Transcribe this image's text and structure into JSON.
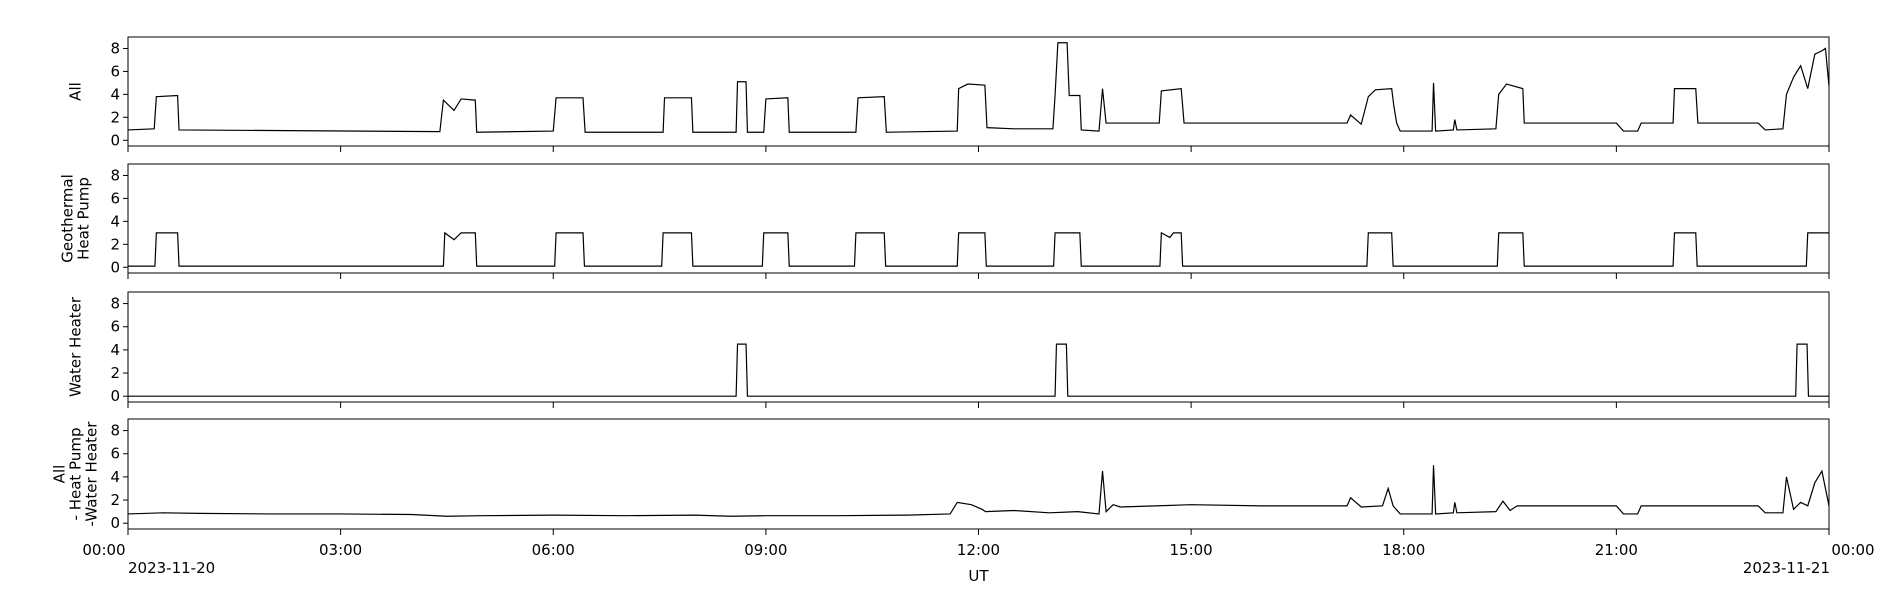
{
  "chart_data": [
    {
      "type": "line",
      "ylabel": [
        "All"
      ],
      "color": "#000000",
      "ylim": [
        -0.5,
        9
      ],
      "yticks": [
        0,
        2,
        4,
        6,
        8
      ],
      "xlim": [
        0,
        24
      ],
      "x": [
        0,
        0.37,
        0.4,
        0.7,
        0.72,
        2,
        4.4,
        4.45,
        4.6,
        4.7,
        4.9,
        4.92,
        6,
        6.04,
        6.42,
        6.45,
        7.55,
        7.57,
        7.95,
        7.97,
        8.58,
        8.6,
        8.72,
        8.74,
        8.97,
        9,
        9.31,
        9.33,
        10.27,
        10.3,
        10.67,
        10.7,
        11.7,
        11.72,
        11.85,
        12.09,
        12.12,
        12.5,
        13.05,
        13.08,
        13.12,
        13.25,
        13.28,
        13.43,
        13.45,
        13.7,
        13.75,
        13.8,
        14,
        14.55,
        14.58,
        14.86,
        14.9,
        16,
        17.2,
        17.25,
        17.4,
        17.5,
        17.6,
        17.83,
        17.86,
        17.9,
        17.95,
        18.4,
        18.42,
        18.45,
        18.7,
        18.72,
        18.75,
        19.3,
        19.34,
        19.45,
        19.68,
        19.7,
        21,
        21.1,
        21.3,
        21.35,
        21.8,
        21.82,
        22.12,
        22.15,
        23,
        23.1,
        23.35,
        23.4,
        23.5,
        23.6,
        23.7,
        23.8,
        23.9,
        23.95,
        24
      ],
      "values": [
        0.9,
        1.0,
        3.8,
        3.9,
        0.9,
        0.85,
        0.75,
        3.5,
        2.6,
        3.6,
        3.5,
        0.7,
        0.8,
        3.7,
        3.7,
        0.7,
        0.7,
        3.7,
        3.7,
        0.7,
        0.7,
        5.1,
        5.1,
        0.7,
        0.7,
        3.6,
        3.7,
        0.7,
        0.7,
        3.7,
        3.8,
        0.7,
        0.8,
        4.5,
        4.9,
        4.8,
        1.1,
        1.0,
        1.0,
        3.9,
        8.5,
        8.5,
        3.9,
        3.9,
        0.9,
        0.8,
        4.5,
        1.5,
        1.5,
        1.5,
        4.3,
        4.5,
        1.5,
        1.5,
        1.5,
        2.2,
        1.4,
        3.8,
        4.4,
        4.5,
        3,
        1.5,
        0.8,
        0.8,
        5.0,
        0.8,
        0.9,
        1.8,
        0.9,
        1.0,
        4.0,
        4.9,
        4.5,
        1.5,
        1.5,
        0.8,
        0.8,
        1.5,
        1.5,
        4.5,
        4.5,
        1.5,
        1.5,
        0.9,
        1.0,
        4.0,
        5.5,
        6.5,
        4.5,
        7.5,
        7.8,
        8.0,
        4.7
      ]
    },
    {
      "type": "line",
      "ylabel": [
        "Geothermal",
        "Heat Pump"
      ],
      "color": "#000000",
      "ylim": [
        -0.5,
        9
      ],
      "yticks": [
        0,
        2,
        4,
        6,
        8
      ],
      "xlim": [
        0,
        24
      ],
      "x": [
        0,
        0.38,
        0.4,
        0.7,
        0.72,
        4.45,
        4.47,
        4.6,
        4.7,
        4.9,
        4.92,
        6.02,
        6.04,
        6.42,
        6.44,
        7.53,
        7.55,
        7.95,
        7.97,
        8.95,
        8.97,
        9.31,
        9.33,
        10.25,
        10.27,
        10.67,
        10.69,
        11.7,
        11.72,
        12.09,
        12.11,
        13.06,
        13.08,
        13.43,
        13.45,
        14.56,
        14.58,
        14.7,
        14.75,
        14.86,
        14.88,
        17.48,
        17.5,
        17.83,
        17.85,
        19.32,
        19.34,
        19.68,
        19.7,
        21.8,
        21.82,
        22.12,
        22.14,
        23.68,
        23.7,
        24
      ],
      "values": [
        0.1,
        0.1,
        3,
        3,
        0.1,
        0.1,
        3,
        2.4,
        3,
        3,
        0.1,
        0.1,
        3,
        3,
        0.1,
        0.1,
        3,
        3,
        0.1,
        0.1,
        3,
        3,
        0.1,
        0.1,
        3,
        3,
        0.1,
        0.1,
        3,
        3,
        0.1,
        0.1,
        3,
        3,
        0.1,
        0.1,
        3,
        2.6,
        3,
        3,
        0.1,
        0.1,
        3,
        3,
        0.1,
        0.1,
        3,
        3,
        0.1,
        0.1,
        3,
        3,
        0.1,
        0.1,
        3,
        3
      ]
    },
    {
      "type": "line",
      "ylabel": [
        "Water Heater"
      ],
      "color": "#000000",
      "ylim": [
        -0.5,
        9
      ],
      "yticks": [
        0,
        2,
        4,
        6,
        8
      ],
      "xlim": [
        0,
        24
      ],
      "x": [
        0,
        8.58,
        8.6,
        8.72,
        8.74,
        13.08,
        13.1,
        13.24,
        13.26,
        23.53,
        23.55,
        23.69,
        23.71,
        24
      ],
      "values": [
        0,
        0,
        4.5,
        4.5,
        0,
        0,
        4.5,
        4.5,
        0,
        0,
        4.5,
        4.5,
        0,
        0
      ]
    },
    {
      "type": "line",
      "ylabel": [
        "All",
        "- Heat Pump",
        "-Water Heater"
      ],
      "color": "#000000",
      "ylim": [
        -0.5,
        9
      ],
      "yticks": [
        0,
        2,
        4,
        6,
        8
      ],
      "xlim": [
        0,
        24
      ],
      "xlabel": "UT",
      "xticks": [
        {
          "value": 0,
          "label": "00:00"
        },
        {
          "value": 3,
          "label": "03:00"
        },
        {
          "value": 6,
          "label": "06:00"
        },
        {
          "value": 9,
          "label": "09:00"
        },
        {
          "value": 12,
          "label": "12:00"
        },
        {
          "value": 15,
          "label": "15:00"
        },
        {
          "value": 18,
          "label": "18:00"
        },
        {
          "value": 21,
          "label": "21:00"
        },
        {
          "value": 24,
          "label": "00:00"
        }
      ],
      "date_labels": [
        {
          "value": 0,
          "label": "2023-11-20"
        },
        {
          "value": 24,
          "label": "2023-11-21"
        }
      ],
      "x": [
        0,
        0.5,
        1,
        2,
        3,
        4,
        4.5,
        5,
        6,
        7,
        8,
        8.5,
        9,
        10,
        11,
        11.6,
        11.7,
        11.9,
        12.05,
        12.1,
        12.5,
        13,
        13.4,
        13.7,
        13.75,
        13.8,
        13.9,
        14,
        14.5,
        15,
        16,
        17,
        17.2,
        17.25,
        17.4,
        17.7,
        17.78,
        17.85,
        17.95,
        18.4,
        18.42,
        18.45,
        18.7,
        18.72,
        18.75,
        19.3,
        19.4,
        19.5,
        19.6,
        20,
        21,
        21.1,
        21.3,
        21.35,
        22,
        23,
        23.1,
        23.35,
        23.4,
        23.5,
        23.6,
        23.7,
        23.8,
        23.9,
        24
      ],
      "values": [
        0.8,
        0.9,
        0.85,
        0.8,
        0.8,
        0.75,
        0.6,
        0.65,
        0.7,
        0.65,
        0.7,
        0.6,
        0.65,
        0.65,
        0.7,
        0.8,
        1.8,
        1.6,
        1.2,
        1.0,
        1.1,
        0.9,
        1.0,
        0.8,
        4.5,
        1.0,
        1.6,
        1.4,
        1.5,
        1.6,
        1.5,
        1.5,
        1.5,
        2.2,
        1.4,
        1.5,
        3.0,
        1.5,
        0.8,
        0.8,
        5.0,
        0.8,
        0.9,
        1.8,
        0.9,
        1.0,
        1.9,
        1.1,
        1.5,
        1.5,
        1.5,
        0.8,
        0.8,
        1.5,
        1.5,
        1.5,
        0.9,
        0.9,
        4.0,
        1.2,
        1.8,
        1.5,
        3.5,
        4.5,
        1.5
      ]
    }
  ]
}
